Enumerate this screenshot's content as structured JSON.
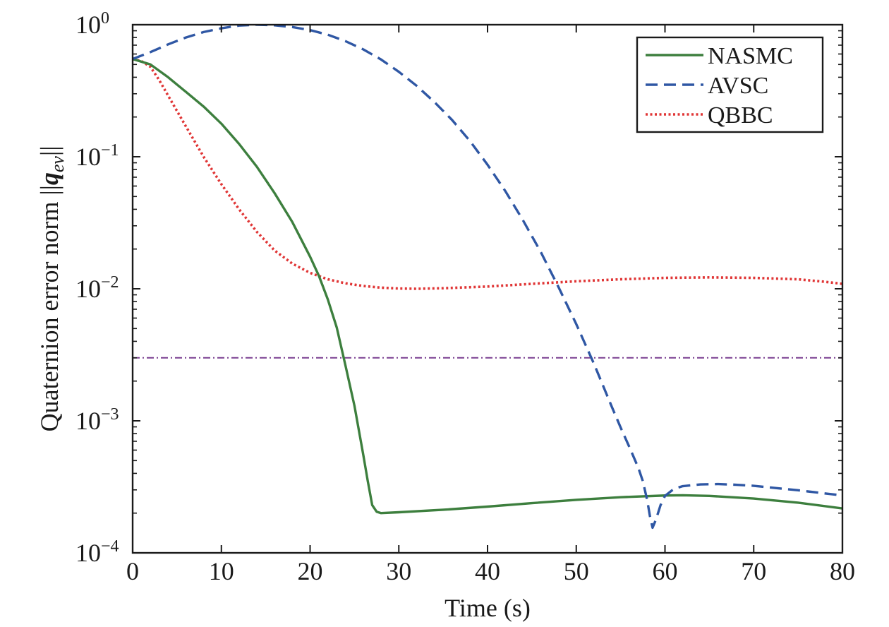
{
  "chart_data": {
    "type": "line",
    "title": "",
    "xlabel": "Time (s)",
    "ylabel": "Quaternion error norm ||q_ev||",
    "ylabel_parts": {
      "prefix": "Quaternion error norm ",
      "bars": "||",
      "symbol": "q",
      "subscript": "ev"
    },
    "xlim": [
      0,
      80
    ],
    "ylim": [
      0.0001,
      1
    ],
    "yscale": "log",
    "grid": false,
    "legend_position": "top-right",
    "x_ticks": [
      0,
      10,
      20,
      30,
      40,
      50,
      60,
      70,
      80
    ],
    "x_tick_labels": [
      "0",
      "10",
      "20",
      "30",
      "40",
      "50",
      "60",
      "70",
      "80"
    ],
    "y_ticks": [
      {
        "value": 1,
        "base": "10",
        "exp": "0"
      },
      {
        "value": 0.1,
        "base": "10",
        "exp": "−1"
      },
      {
        "value": 0.01,
        "base": "10",
        "exp": "−2"
      },
      {
        "value": 0.001,
        "base": "10",
        "exp": "−3"
      },
      {
        "value": 0.0001,
        "base": "10",
        "exp": "−4"
      }
    ],
    "series": [
      {
        "name": "NASMC",
        "color": "#3d7f3e",
        "dash": "solid",
        "x": [
          0,
          2,
          4,
          6,
          8,
          10,
          12,
          14,
          16,
          18,
          20,
          21,
          22,
          23,
          24,
          25,
          26,
          26.5,
          27,
          27.5,
          28,
          30,
          35,
          40,
          45,
          50,
          55,
          60,
          62,
          65,
          70,
          75,
          80
        ],
        "y": [
          0.55,
          0.5,
          0.4,
          0.31,
          0.24,
          0.178,
          0.125,
          0.084,
          0.053,
          0.032,
          0.0175,
          0.0125,
          0.0083,
          0.0051,
          0.0026,
          0.0013,
          0.00055,
          0.00035,
          0.00023,
          0.000205,
          0.0002,
          0.000203,
          0.000212,
          0.000224,
          0.000238,
          0.000252,
          0.000264,
          0.000272,
          0.000273,
          0.00027,
          0.000258,
          0.00024,
          0.000217
        ]
      },
      {
        "name": "AVSC",
        "color": "#2f57a4",
        "dash": "dashed",
        "x": [
          0,
          2,
          4,
          6,
          8,
          10,
          12,
          14,
          16,
          18,
          20,
          22,
          24,
          26,
          28,
          30,
          32,
          34,
          36,
          38,
          40,
          42,
          44,
          46,
          48,
          50,
          52,
          54,
          55,
          56,
          57,
          57.5,
          58,
          58.3,
          58.6,
          59,
          59.5,
          60,
          61,
          62,
          64,
          66,
          68,
          70,
          72,
          75,
          78,
          80
        ],
        "y": [
          0.55,
          0.62,
          0.71,
          0.8,
          0.88,
          0.94,
          0.985,
          1.0,
          0.99,
          0.96,
          0.91,
          0.84,
          0.75,
          0.65,
          0.545,
          0.44,
          0.345,
          0.26,
          0.19,
          0.132,
          0.087,
          0.055,
          0.033,
          0.019,
          0.0103,
          0.0054,
          0.0027,
          0.00128,
          0.00089,
          0.00063,
          0.00044,
          0.00035,
          0.00025,
          0.00019,
          0.000155,
          0.00018,
          0.00023,
          0.00027,
          0.000305,
          0.00032,
          0.00033,
          0.000332,
          0.000328,
          0.000322,
          0.000312,
          0.000298,
          0.000282,
          0.000272
        ]
      },
      {
        "name": "QBBC",
        "color": "#e03535",
        "dash": "dotted",
        "x": [
          0,
          1,
          2,
          3,
          4,
          6,
          8,
          10,
          12,
          14,
          16,
          18,
          20,
          22,
          24,
          26,
          28,
          30,
          32,
          35,
          40,
          45,
          50,
          55,
          60,
          65,
          70,
          75,
          78,
          80
        ],
        "y": [
          0.55,
          0.53,
          0.48,
          0.38,
          0.29,
          0.17,
          0.1,
          0.062,
          0.04,
          0.027,
          0.0195,
          0.0155,
          0.0132,
          0.0118,
          0.011,
          0.0105,
          0.0102,
          0.01005,
          0.01,
          0.0101,
          0.0104,
          0.0109,
          0.0114,
          0.0118,
          0.0121,
          0.0122,
          0.0121,
          0.0118,
          0.0113,
          0.0109
        ]
      },
      {
        "name": "",
        "color": "#7a3e91",
        "dash": "dashdot",
        "x": [
          0,
          80
        ],
        "y": [
          0.003,
          0.003
        ]
      }
    ]
  }
}
